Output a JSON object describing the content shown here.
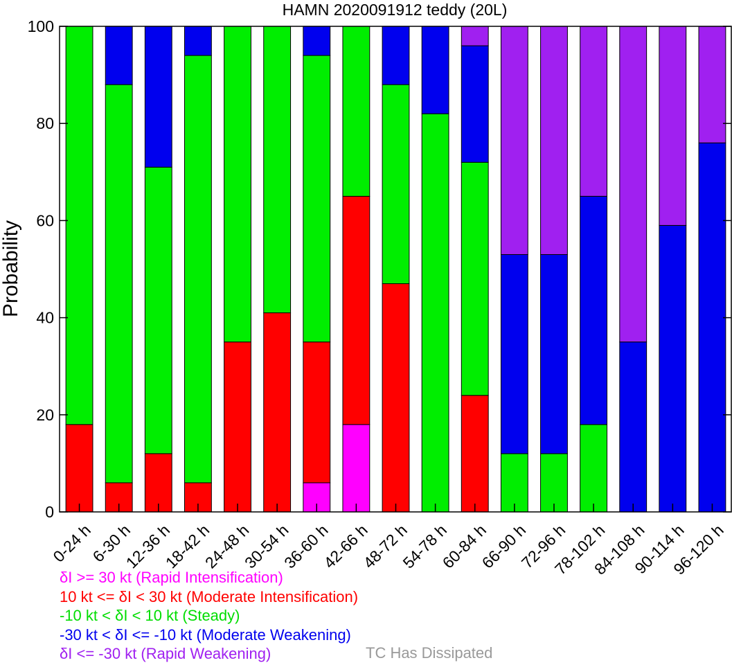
{
  "chart_data": {
    "type": "bar",
    "stacked": true,
    "title": "HAMN 2020091912 teddy (20L)",
    "xlabel": "",
    "ylabel": "Probability",
    "ylim": [
      0,
      100
    ],
    "yticks": [
      0,
      20,
      40,
      60,
      80,
      100
    ],
    "grid": false,
    "categories": [
      "0-24 h",
      "6-30 h",
      "12-36 h",
      "18-42 h",
      "24-48 h",
      "30-54 h",
      "36-60 h",
      "42-66 h",
      "48-72 h",
      "54-78 h",
      "60-84 h",
      "66-90 h",
      "72-96 h",
      "78-102 h",
      "84-108 h",
      "90-114 h",
      "96-120 h"
    ],
    "series": [
      {
        "name": "δI >= 30 kt (Rapid Intensification)",
        "color": "#ff00ff",
        "values": [
          0,
          0,
          0,
          0,
          0,
          0,
          6,
          18,
          0,
          0,
          0,
          0,
          0,
          0,
          0,
          0,
          0
        ]
      },
      {
        "name": "10 kt <= δI < 30 kt (Moderate Intensification)",
        "color": "#ff0000",
        "values": [
          18,
          6,
          12,
          6,
          35,
          41,
          29,
          47,
          47,
          0,
          24,
          0,
          0,
          0,
          0,
          0,
          0
        ]
      },
      {
        "name": "-10 kt < δI < 10 kt (Steady)",
        "color": "#00ee00",
        "values": [
          82,
          82,
          59,
          88,
          65,
          59,
          59,
          35,
          41,
          82,
          48,
          12,
          12,
          18,
          0,
          0,
          0
        ]
      },
      {
        "name": "-30 kt < δI <= -10 kt (Moderate Weakening)",
        "color": "#0000ee",
        "values": [
          0,
          12,
          29,
          6,
          0,
          0,
          6,
          0,
          12,
          18,
          24,
          41,
          41,
          47,
          35,
          59,
          76
        ]
      },
      {
        "name": "δI <= -30 kt (Rapid Weakening)",
        "color": "#a020f0",
        "values": [
          0,
          0,
          0,
          0,
          0,
          0,
          0,
          0,
          0,
          0,
          4,
          47,
          47,
          35,
          65,
          41,
          24
        ]
      }
    ],
    "dissipated_label": "TC Has Dissipated",
    "dissipated_color": "#999999"
  }
}
